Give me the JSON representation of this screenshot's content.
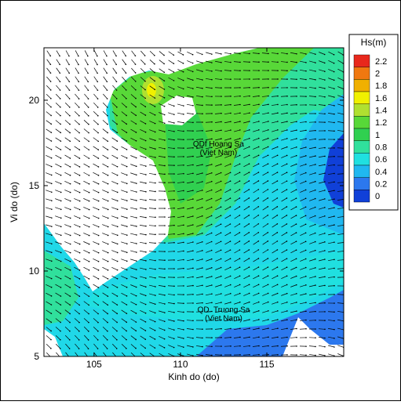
{
  "map": {
    "xlabel": "Kinh do (do)",
    "ylabel": "Vi do (do)",
    "xlim": [
      102.1,
      119.45
    ],
    "ylim": [
      5,
      23.07
    ],
    "xticks": [
      105,
      110,
      115
    ],
    "yticks": [
      5,
      10,
      15,
      20
    ],
    "annotations": [
      {
        "lines": [
          "QDf Hoang Sa",
          "(Viet Nam)"
        ],
        "lon": 112.2,
        "lat": 17.3
      },
      {
        "lines": [
          "QD. Truong Sa",
          "(Viet Nam)"
        ],
        "lon": 112.5,
        "lat": 7.6
      }
    ],
    "colorbar": {
      "title": "Hs(m)",
      "levels": [
        2.2,
        2,
        1.8,
        1.6,
        1.4,
        1.2,
        1,
        0.8,
        0.6,
        0.4,
        0.2,
        0
      ],
      "colors": [
        "#e8281c",
        "#f07810",
        "#f0b000",
        "#f0f000",
        "#b0e030",
        "#58d838",
        "#30d050",
        "#30e09c",
        "#20e0e0",
        "#20b8f0",
        "#2c78ee",
        "#1040d8"
      ]
    }
  }
}
